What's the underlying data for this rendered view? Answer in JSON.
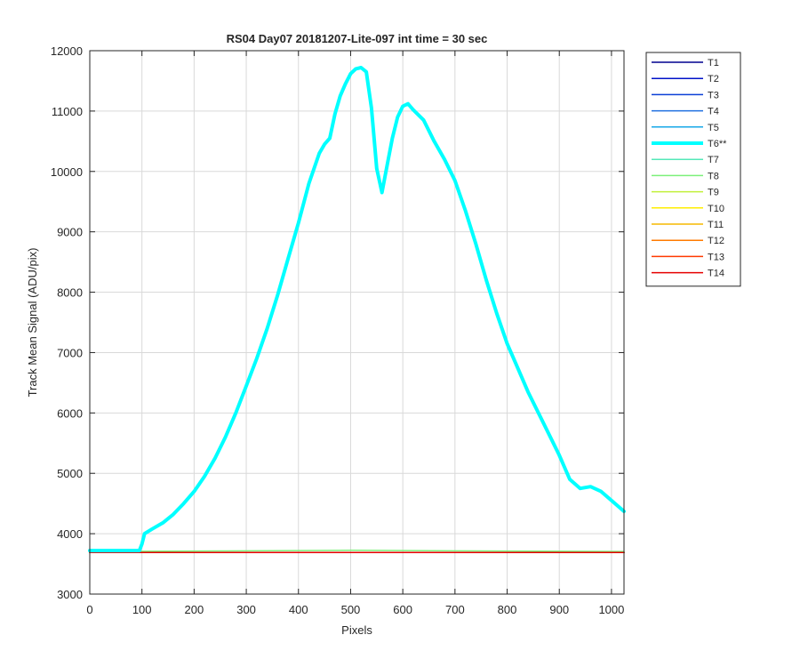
{
  "chart_data": {
    "type": "line",
    "title": "RS04 Day07 20181207-Lite-097 int time = 30 sec",
    "xlabel": "Pixels",
    "ylabel": "Track Mean Signal (ADU/pix)",
    "xlim": [
      0,
      1024
    ],
    "ylim": [
      3000,
      12000
    ],
    "xticks": [
      0,
      100,
      200,
      300,
      400,
      500,
      600,
      700,
      800,
      900,
      1000
    ],
    "yticks": [
      3000,
      4000,
      5000,
      6000,
      7000,
      8000,
      9000,
      10000,
      11000,
      12000
    ],
    "grid": true,
    "legend_position": "outside-top-right",
    "series": [
      {
        "name": "T1",
        "color": "#00008f",
        "x": [
          0,
          1024
        ],
        "y": [
          3690,
          3690
        ]
      },
      {
        "name": "T2",
        "color": "#0012c8",
        "x": [
          0,
          1024
        ],
        "y": [
          3690,
          3690
        ]
      },
      {
        "name": "T3",
        "color": "#0a3fd6",
        "x": [
          0,
          1024
        ],
        "y": [
          3690,
          3690
        ]
      },
      {
        "name": "T4",
        "color": "#1f6fe0",
        "x": [
          0,
          1024
        ],
        "y": [
          3690,
          3690
        ]
      },
      {
        "name": "T5",
        "color": "#17a8e8",
        "x": [
          0,
          1024
        ],
        "y": [
          3690,
          3690
        ]
      },
      {
        "name": "T6**",
        "color": "#00ffff",
        "highlight": true,
        "x": [
          0,
          95,
          100,
          105,
          120,
          140,
          160,
          180,
          200,
          220,
          240,
          260,
          280,
          300,
          320,
          340,
          360,
          380,
          400,
          420,
          440,
          450,
          460,
          470,
          480,
          490,
          500,
          510,
          520,
          530,
          540,
          550,
          560,
          570,
          580,
          590,
          600,
          610,
          620,
          640,
          660,
          680,
          700,
          720,
          740,
          760,
          780,
          800,
          820,
          840,
          860,
          880,
          900,
          920,
          940,
          960,
          980,
          1000,
          1024
        ],
        "y": [
          3720,
          3720,
          3830,
          4000,
          4080,
          4180,
          4320,
          4500,
          4700,
          4950,
          5250,
          5600,
          6000,
          6450,
          6900,
          7400,
          7950,
          8550,
          9150,
          9800,
          10300,
          10450,
          10550,
          10950,
          11250,
          11450,
          11620,
          11700,
          11720,
          11650,
          11050,
          10050,
          9650,
          10100,
          10550,
          10900,
          11080,
          11120,
          11020,
          10850,
          10500,
          10200,
          9850,
          9350,
          8800,
          8200,
          7650,
          7150,
          6750,
          6350,
          6000,
          5650,
          5300,
          4900,
          4750,
          4780,
          4700,
          4550,
          4370
        ]
      },
      {
        "name": "T7",
        "color": "#55e8b8",
        "x": [
          0,
          1024
        ],
        "y": [
          3690,
          3690
        ]
      },
      {
        "name": "T8",
        "color": "#7cf07a",
        "x": [
          0,
          250,
          500,
          750,
          1024
        ],
        "y": [
          3705,
          3715,
          3725,
          3715,
          3705
        ]
      },
      {
        "name": "T9",
        "color": "#c2f03a",
        "x": [
          0,
          1024
        ],
        "y": [
          3690,
          3690
        ]
      },
      {
        "name": "T10",
        "color": "#ffee00",
        "x": [
          0,
          1024
        ],
        "y": [
          3690,
          3690
        ]
      },
      {
        "name": "T11",
        "color": "#f5b800",
        "x": [
          0,
          1024
        ],
        "y": [
          3690,
          3690
        ]
      },
      {
        "name": "T12",
        "color": "#ff7a00",
        "x": [
          0,
          1024
        ],
        "y": [
          3690,
          3690
        ]
      },
      {
        "name": "T13",
        "color": "#ff3a00",
        "x": [
          0,
          1024
        ],
        "y": [
          3690,
          3690
        ]
      },
      {
        "name": "T14",
        "color": "#e60000",
        "x": [
          0,
          1024
        ],
        "y": [
          3690,
          3690
        ]
      }
    ]
  }
}
